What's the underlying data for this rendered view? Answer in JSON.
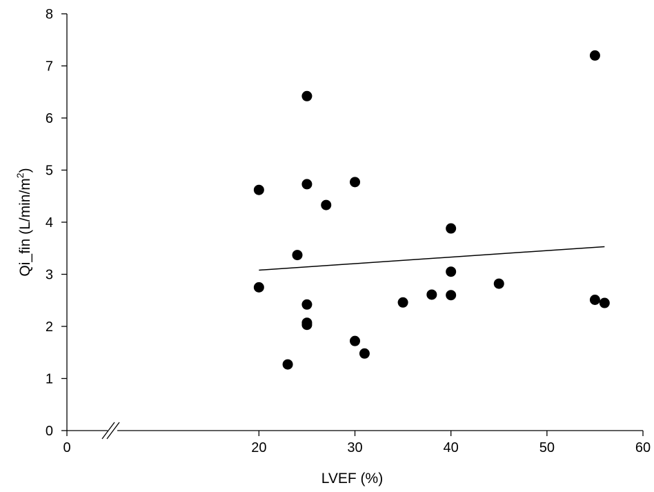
{
  "chart_data": {
    "type": "scatter",
    "title": "",
    "xlabel": "LVEF (%)",
    "ylabel_main": "Qi_fin (L/min/m",
    "ylabel_sup": "2",
    "ylabel_close": ")",
    "xlim": [
      0,
      60
    ],
    "ylim": [
      0,
      8
    ],
    "x_ticks": [
      0,
      10,
      20,
      30,
      40,
      50,
      60
    ],
    "x_tick_labels": [
      "0",
      "",
      "20",
      "30",
      "40",
      "50",
      "60"
    ],
    "y_ticks": [
      0,
      1,
      2,
      3,
      4,
      5,
      6,
      7,
      8
    ],
    "y_tick_labels": [
      "0",
      "1",
      "2",
      "3",
      "4",
      "5",
      "6",
      "7",
      "8"
    ],
    "grid": false,
    "axis_break": "x-axis between 0 and 20",
    "points": [
      {
        "x": 20,
        "y": 4.62
      },
      {
        "x": 20,
        "y": 2.75
      },
      {
        "x": 23,
        "y": 1.27
      },
      {
        "x": 24,
        "y": 3.37
      },
      {
        "x": 25,
        "y": 6.42
      },
      {
        "x": 25,
        "y": 4.73
      },
      {
        "x": 25,
        "y": 2.42
      },
      {
        "x": 25,
        "y": 2.07
      },
      {
        "x": 25,
        "y": 2.03
      },
      {
        "x": 27,
        "y": 4.33
      },
      {
        "x": 30,
        "y": 4.77
      },
      {
        "x": 30,
        "y": 1.72
      },
      {
        "x": 31,
        "y": 1.48
      },
      {
        "x": 35,
        "y": 2.46
      },
      {
        "x": 38,
        "y": 2.61
      },
      {
        "x": 40,
        "y": 3.88
      },
      {
        "x": 40,
        "y": 3.05
      },
      {
        "x": 40,
        "y": 2.6
      },
      {
        "x": 45,
        "y": 2.82
      },
      {
        "x": 55,
        "y": 7.2
      },
      {
        "x": 55,
        "y": 2.51
      },
      {
        "x": 56,
        "y": 2.45
      }
    ],
    "trendline": {
      "x": [
        20,
        56
      ],
      "y": [
        3.08,
        3.53
      ]
    }
  }
}
